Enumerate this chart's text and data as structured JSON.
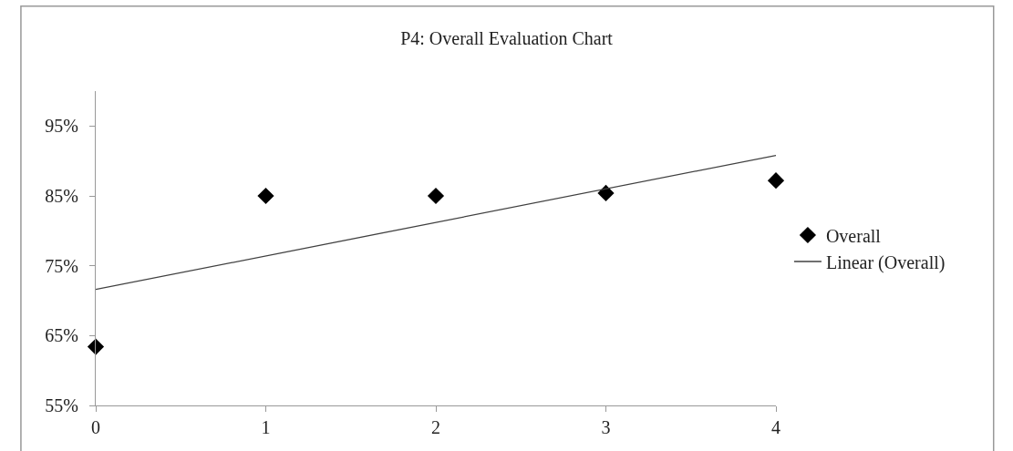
{
  "chart_data": {
    "type": "scatter",
    "title": "P4: Overall Evaluation Chart",
    "x": [
      0,
      1,
      2,
      3,
      4
    ],
    "series": [
      {
        "name": "Overall",
        "color": "#000000",
        "marker": "diamond",
        "values": [
          63.4,
          85.0,
          85.0,
          85.4,
          87.2
        ]
      },
      {
        "name": "Linear (Overall)",
        "type": "line",
        "color": "#404040",
        "line_style": "solid",
        "marker": "none",
        "x": [
          0,
          4
        ],
        "values": [
          71.6,
          90.8
        ]
      }
    ],
    "xlim": [
      0,
      4
    ],
    "xticks": [
      0,
      1,
      2,
      3,
      4
    ],
    "ylim": [
      55,
      100
    ],
    "yticks": [
      {
        "value": 55,
        "label": "55%"
      },
      {
        "value": 65,
        "label": "65%"
      },
      {
        "value": 75,
        "label": "75%"
      },
      {
        "value": 85,
        "label": "85%"
      },
      {
        "value": 95,
        "label": "95%"
      }
    ],
    "legend": "right"
  }
}
